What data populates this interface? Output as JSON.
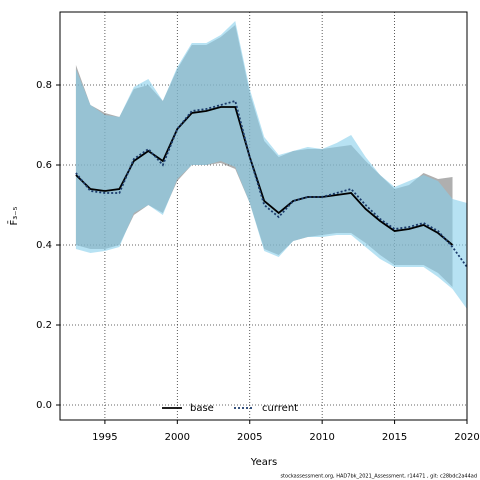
{
  "chart_data": {
    "type": "line",
    "ylabel": "F̄₃₋₅",
    "xlabel": "Years",
    "footer": "stockassessment.org, HAD7bk_2021_Assessment, r14471 , git: c28bdc2a44ad",
    "x": [
      1993,
      1994,
      1995,
      1996,
      1997,
      1998,
      1999,
      2000,
      2001,
      2002,
      2003,
      2004,
      2005,
      2006,
      2007,
      2008,
      2009,
      2010,
      2011,
      2012,
      2013,
      2014,
      2015,
      2016,
      2017,
      2018,
      2019,
      2020
    ],
    "series": [
      {
        "name": "base",
        "color": "#000000",
        "band_color": "rgba(110,110,110,0.55)",
        "dash": false,
        "values": [
          0.575,
          0.54,
          0.535,
          0.54,
          0.61,
          0.635,
          0.61,
          0.69,
          0.73,
          0.735,
          0.745,
          0.745,
          0.62,
          0.51,
          0.48,
          0.51,
          0.52,
          0.52,
          0.525,
          0.53,
          0.49,
          0.46,
          0.435,
          0.44,
          0.45,
          0.43,
          0.4,
          null
        ],
        "upper": [
          0.85,
          0.75,
          0.73,
          0.72,
          0.79,
          0.8,
          0.76,
          0.84,
          0.9,
          0.9,
          0.92,
          0.95,
          0.78,
          0.66,
          0.62,
          0.635,
          0.64,
          0.64,
          0.645,
          0.65,
          0.61,
          0.575,
          0.54,
          0.55,
          0.58,
          0.565,
          0.57,
          null
        ],
        "lower": [
          0.4,
          0.39,
          0.39,
          0.4,
          0.475,
          0.5,
          0.48,
          0.56,
          0.6,
          0.6,
          0.605,
          0.59,
          0.505,
          0.39,
          0.375,
          0.41,
          0.42,
          0.425,
          0.43,
          0.43,
          0.405,
          0.375,
          0.35,
          0.35,
          0.35,
          0.33,
          0.295,
          null
        ]
      },
      {
        "name": "current",
        "color": "#1a3a6b",
        "band_color": "rgba(135,206,235,0.6)",
        "dash": true,
        "values": [
          0.58,
          0.535,
          0.53,
          0.53,
          0.615,
          0.64,
          0.6,
          0.69,
          0.735,
          0.74,
          0.75,
          0.76,
          0.62,
          0.5,
          0.47,
          0.51,
          0.52,
          0.52,
          0.53,
          0.54,
          0.5,
          0.465,
          0.44,
          0.445,
          0.455,
          0.435,
          0.395,
          0.345
        ],
        "upper": [
          0.84,
          0.75,
          0.725,
          0.72,
          0.795,
          0.815,
          0.76,
          0.845,
          0.905,
          0.905,
          0.925,
          0.96,
          0.79,
          0.67,
          0.625,
          0.635,
          0.645,
          0.64,
          0.655,
          0.675,
          0.62,
          0.575,
          0.545,
          0.56,
          0.575,
          0.56,
          0.515,
          0.505
        ],
        "lower": [
          0.39,
          0.38,
          0.385,
          0.395,
          0.48,
          0.5,
          0.475,
          0.565,
          0.6,
          0.6,
          0.61,
          0.595,
          0.505,
          0.385,
          0.37,
          0.41,
          0.42,
          0.42,
          0.425,
          0.425,
          0.395,
          0.365,
          0.345,
          0.345,
          0.345,
          0.32,
          0.29,
          0.24
        ]
      }
    ],
    "xlim": [
      1991.9,
      2020
    ],
    "xticks": [
      1995,
      2000,
      2005,
      2010,
      2015,
      2020
    ],
    "ylim": [
      -0.0375,
      0.9825
    ],
    "yticks": [
      {
        "value": 0,
        "label": "0.0"
      },
      0.2,
      0.4,
      0.6,
      0.8
    ],
    "grid": true,
    "legend": "bottom"
  }
}
